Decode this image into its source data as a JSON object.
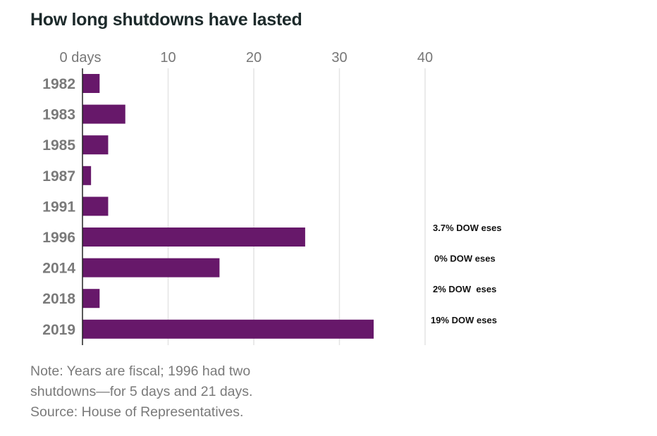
{
  "chart_data": {
    "type": "bar",
    "orientation": "horizontal",
    "title": "How long shutdowns have lasted",
    "xlabel": "",
    "ylabel": "",
    "x_tick_labels": [
      "0 days",
      "10",
      "20",
      "30",
      "40"
    ],
    "x_ticks": [
      0,
      10,
      20,
      30,
      40
    ],
    "xlim": [
      0,
      40
    ],
    "grid": true,
    "categories": [
      "1982",
      "1983",
      "1985",
      "1987",
      "1991",
      "1996",
      "2014",
      "2018",
      "2019"
    ],
    "values": [
      2,
      5,
      3,
      1,
      3,
      26,
      16,
      2,
      34
    ],
    "bar_color": "#67186a",
    "annotations": [
      {
        "category": "1996",
        "text": "3.7% DOW eses"
      },
      {
        "category": "2014",
        "text": "0% DOW eses"
      },
      {
        "category": "2018",
        "text": "2% DOW  eses"
      },
      {
        "category": "2019",
        "text": "19% DOW eses"
      }
    ],
    "notes": [
      "Note: Years are fiscal; 1996 had two",
      "shutdowns—for 5 days and 21 days.",
      "Source: House of Representatives."
    ]
  }
}
